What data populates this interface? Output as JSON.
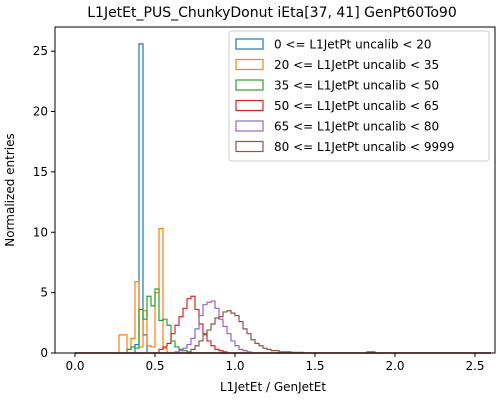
{
  "chart_data": {
    "type": "line",
    "title": "L1JetEt_PUS_ChunkyDonut iEta[37, 41] GenPt60To90",
    "xlabel": "L1JetEt / GenJetEt",
    "ylabel": "Normalized entries",
    "xlim": [
      -0.125,
      2.625
    ],
    "ylim": [
      0,
      27
    ],
    "bin_width": 0.025,
    "xticks": [
      0.0,
      0.5,
      1.0,
      1.5,
      2.0,
      2.5
    ],
    "xtick_labels": [
      "0.0",
      "0.5",
      "1.0",
      "1.5",
      "2.0",
      "2.5"
    ],
    "yticks": [
      0,
      5,
      10,
      15,
      20,
      25
    ],
    "ytick_labels": [
      "0",
      "5",
      "10",
      "15",
      "20",
      "25"
    ],
    "grid": false,
    "legend_position": "top-right",
    "series": [
      {
        "name": "0 <= L1JetPt uncalib < 20",
        "color": "#1f77b4",
        "bins": [
          [
            0.375,
            0.7
          ],
          [
            0.4,
            25.6
          ],
          [
            0.425,
            1.5
          ]
        ]
      },
      {
        "name": "20 <= L1JetPt uncalib < 35",
        "color": "#ff7f0e",
        "bins": [
          [
            0.275,
            1.5
          ],
          [
            0.3,
            1.5
          ],
          [
            0.325,
            0.3
          ],
          [
            0.35,
            1.2
          ],
          [
            0.375,
            5.9
          ],
          [
            0.4,
            0.5
          ],
          [
            0.425,
            3.5
          ],
          [
            0.45,
            0.6
          ],
          [
            0.475,
            0.5
          ],
          [
            0.5,
            5.0
          ],
          [
            0.525,
            10.3
          ],
          [
            0.55,
            0.4
          ]
        ]
      },
      {
        "name": "35 <= L1JetPt uncalib < 50",
        "color": "#2ca02c",
        "bins": [
          [
            0.325,
            0.3
          ],
          [
            0.35,
            0.5
          ],
          [
            0.375,
            0.4
          ],
          [
            0.4,
            3.6
          ],
          [
            0.425,
            2.8
          ],
          [
            0.45,
            4.7
          ],
          [
            0.475,
            3.9
          ],
          [
            0.5,
            5.3
          ],
          [
            0.525,
            2.7
          ],
          [
            0.55,
            2.8
          ],
          [
            0.575,
            2.3
          ],
          [
            0.6,
            1.0
          ],
          [
            0.625,
            0.5
          ],
          [
            0.65,
            0.3
          ],
          [
            0.675,
            0.2
          ]
        ]
      },
      {
        "name": "50 <= L1JetPt uncalib < 65",
        "color": "#d62728",
        "bins": [
          [
            0.525,
            0.3
          ],
          [
            0.55,
            0.5
          ],
          [
            0.575,
            0.8
          ],
          [
            0.6,
            1.6
          ],
          [
            0.625,
            2.3
          ],
          [
            0.65,
            3.0
          ],
          [
            0.675,
            3.7
          ],
          [
            0.7,
            4.5
          ],
          [
            0.725,
            4.7
          ],
          [
            0.75,
            3.6
          ],
          [
            0.775,
            2.4
          ],
          [
            0.8,
            1.6
          ],
          [
            0.825,
            1.0
          ],
          [
            0.85,
            0.6
          ],
          [
            0.875,
            0.3
          ],
          [
            0.9,
            0.2
          ],
          [
            0.925,
            0.1
          ]
        ]
      },
      {
        "name": "65 <= L1JetPt uncalib < 80",
        "color": "#9467bd",
        "bins": [
          [
            0.625,
            0.1
          ],
          [
            0.65,
            0.2
          ],
          [
            0.675,
            0.4
          ],
          [
            0.7,
            0.7
          ],
          [
            0.725,
            1.2
          ],
          [
            0.75,
            2.0
          ],
          [
            0.775,
            3.1
          ],
          [
            0.8,
            4.0
          ],
          [
            0.825,
            4.2
          ],
          [
            0.85,
            4.3
          ],
          [
            0.875,
            3.7
          ],
          [
            0.9,
            2.8
          ],
          [
            0.925,
            2.2
          ],
          [
            0.95,
            1.6
          ],
          [
            0.975,
            1.0
          ],
          [
            1.0,
            0.6
          ],
          [
            1.025,
            0.3
          ],
          [
            1.05,
            0.2
          ],
          [
            1.075,
            0.1
          ]
        ]
      },
      {
        "name": "80 <= L1JetPt uncalib < 9999",
        "color": "#8c564b",
        "bins": [
          [
            0.7,
            0.1
          ],
          [
            0.725,
            0.3
          ],
          [
            0.75,
            0.6
          ],
          [
            0.775,
            1.0
          ],
          [
            0.8,
            1.5
          ],
          [
            0.825,
            1.9
          ],
          [
            0.85,
            2.4
          ],
          [
            0.875,
            2.9
          ],
          [
            0.9,
            3.0
          ],
          [
            0.925,
            3.4
          ],
          [
            0.95,
            3.5
          ],
          [
            0.975,
            3.3
          ],
          [
            1.0,
            3.1
          ],
          [
            1.025,
            2.6
          ],
          [
            1.05,
            2.0
          ],
          [
            1.075,
            1.6
          ],
          [
            1.1,
            1.1
          ],
          [
            1.125,
            0.8
          ],
          [
            1.15,
            0.6
          ],
          [
            1.175,
            0.4
          ],
          [
            1.2,
            0.3
          ],
          [
            1.225,
            0.2
          ],
          [
            1.25,
            0.2
          ],
          [
            1.275,
            0.1
          ],
          [
            1.3,
            0.1
          ],
          [
            1.325,
            0.1
          ],
          [
            1.35,
            0.05
          ],
          [
            1.375,
            0.05
          ],
          [
            1.4,
            0.05
          ],
          [
            1.825,
            0.1
          ],
          [
            1.85,
            0.1
          ]
        ]
      }
    ]
  }
}
